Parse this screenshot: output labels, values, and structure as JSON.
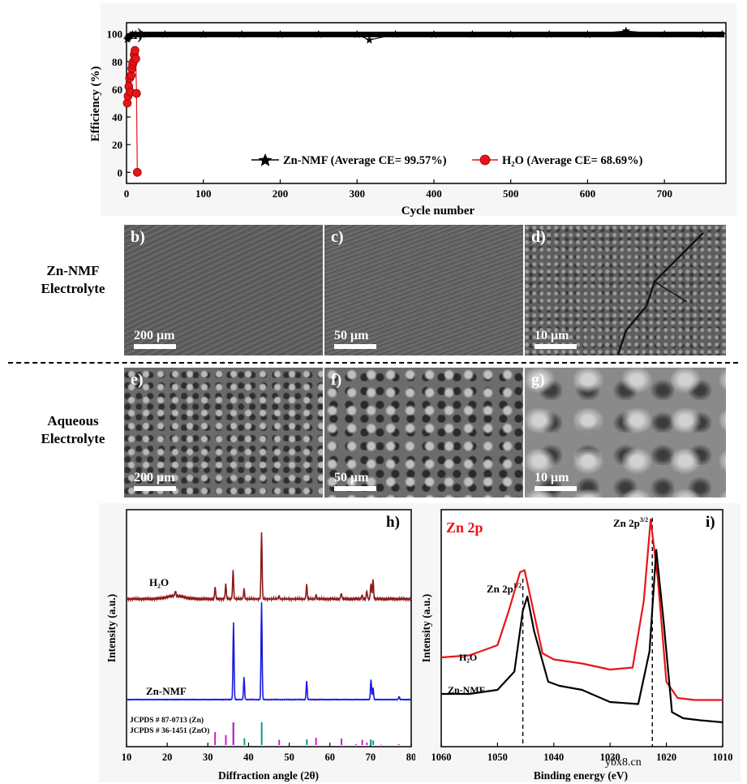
{
  "chart_data": [
    {
      "type": "scatter",
      "panel_label": "a)",
      "xlabel": "Cycle number",
      "ylabel": "Efficiency (%)",
      "xlim": [
        0,
        780
      ],
      "ylim": [
        -8,
        108
      ],
      "xticks": [
        0,
        100,
        200,
        300,
        400,
        500,
        600,
        700
      ],
      "yticks": [
        0,
        20,
        40,
        60,
        80,
        100
      ],
      "legend_position": "bottom-right",
      "series": [
        {
          "name": "Zn-NMF (Average CE= 99.57%)",
          "marker": "star",
          "color": "#000000",
          "x": [
            1,
            2,
            3,
            5,
            8,
            12,
            20,
            50,
            100,
            150,
            200,
            250,
            300,
            316,
            350,
            400,
            450,
            500,
            550,
            600,
            650,
            700,
            750,
            775
          ],
          "y": [
            96,
            97,
            98,
            99,
            99.5,
            99.6,
            99.5,
            99.6,
            99.5,
            99.6,
            99.5,
            99.6,
            99.5,
            95.5,
            99.6,
            99.5,
            99.6,
            99.5,
            99.6,
            99.5,
            102,
            99.6,
            99.5,
            99.6
          ]
        },
        {
          "name": "H₂O (Average CE= 68.69%)",
          "marker": "circle",
          "color": "#e8141a",
          "x": [
            1,
            2,
            3,
            4,
            5,
            6,
            7,
            8,
            9,
            10,
            11,
            12,
            13,
            14
          ],
          "y": [
            50,
            55,
            62,
            68,
            58,
            70,
            75,
            78,
            80,
            85,
            88,
            82,
            57,
            0
          ]
        }
      ]
    },
    {
      "type": "line",
      "panel_label": "h)",
      "xlabel": "Diffraction angle (2θ)",
      "ylabel": "Intensity (a.u.)",
      "xlim": [
        10,
        80
      ],
      "xticks": [
        10,
        20,
        30,
        40,
        50,
        60,
        70,
        80
      ],
      "series": [
        {
          "name": "H₂O",
          "color": "#8b1a1a",
          "peaks": [
            [
              22,
              2.5
            ],
            [
              31.8,
              6
            ],
            [
              34.4,
              7
            ],
            [
              36.2,
              14
            ],
            [
              38.9,
              5
            ],
            [
              43.2,
              33
            ],
            [
              47.5,
              1.5
            ],
            [
              54.3,
              7
            ],
            [
              56.6,
              2
            ],
            [
              62.8,
              3
            ],
            [
              67.9,
              2
            ],
            [
              69.1,
              4
            ],
            [
              70.6,
              10
            ],
            [
              70.1,
              8
            ]
          ]
        },
        {
          "name": "Zn-NMF",
          "color": "#1a1adf",
          "peaks": [
            [
              36.3,
              38
            ],
            [
              38.9,
              11
            ],
            [
              43.2,
              48
            ],
            [
              54.3,
              9
            ],
            [
              70.1,
              10
            ],
            [
              70.6,
              6
            ],
            [
              77,
              1.5
            ]
          ]
        }
      ],
      "references": [
        {
          "name": "JCPDS # 87-0713 (Zn)",
          "color": "#0b9a8a",
          "lines": [
            [
              36.3,
              100
            ],
            [
              38.99,
              30
            ],
            [
              43.23,
              100
            ],
            [
              54.34,
              25
            ],
            [
              70.06,
              25
            ],
            [
              70.66,
              20
            ]
          ]
        },
        {
          "name": "JCPDS # 36-1451 (ZnO)",
          "color": "#d01ad0",
          "lines": [
            [
              31.77,
              57
            ],
            [
              34.42,
              44
            ],
            [
              36.25,
              100
            ],
            [
              47.54,
              23
            ],
            [
              56.6,
              32
            ],
            [
              62.86,
              29
            ],
            [
              66.38,
              4
            ],
            [
              67.96,
              23
            ],
            [
              69.1,
              11
            ],
            [
              72.56,
              2
            ],
            [
              76.95,
              4
            ]
          ]
        }
      ]
    },
    {
      "type": "line",
      "panel_label": "i)",
      "title": "Zn 2p",
      "xlabel": "Binding energy (eV)",
      "ylabel": "Intensity (a.u.)",
      "xlim": [
        1060,
        1010
      ],
      "xticks": [
        1060,
        1050,
        1040,
        1030,
        1020,
        1010
      ],
      "annotations": [
        "Zn 2p",
        "1/2",
        "Zn 2p",
        "3/2"
      ],
      "series": [
        {
          "name": "H₂O",
          "color": "#e8141a",
          "x": [
            1060,
            1055,
            1050,
            1048,
            1046,
            1045.2,
            1044,
            1042,
            1040,
            1035,
            1030,
            1026,
            1024,
            1022.8,
            1021.5,
            1020,
            1018,
            1015,
            1010
          ],
          "y": [
            0.32,
            0.33,
            0.38,
            0.55,
            0.74,
            0.75,
            0.6,
            0.34,
            0.31,
            0.29,
            0.26,
            0.27,
            0.6,
            1.0,
            0.7,
            0.2,
            0.12,
            0.11,
            0.11
          ]
        },
        {
          "name": "Zn-NMF",
          "color": "#000000",
          "x": [
            1060,
            1055,
            1050,
            1047,
            1045.5,
            1044.7,
            1043.5,
            1041,
            1039,
            1035,
            1030,
            1025,
            1023,
            1021.8,
            1020.5,
            1019,
            1017,
            1014,
            1010
          ],
          "y": [
            0.14,
            0.14,
            0.16,
            0.25,
            0.55,
            0.62,
            0.45,
            0.2,
            0.18,
            0.16,
            0.1,
            0.09,
            0.35,
            0.85,
            0.5,
            0.05,
            0.02,
            0.01,
            0.0
          ]
        }
      ],
      "dashed_markers": [
        1045.5,
        1022.5
      ]
    }
  ],
  "sem_panels": {
    "row_labels": [
      {
        "line1": "Zn-NMF",
        "line2": "Electrolyte"
      },
      {
        "line1": "Aqueous",
        "line2": "Electrolyte"
      }
    ],
    "tiles": [
      {
        "label": "b)",
        "scale": "200 μm"
      },
      {
        "label": "c)",
        "scale": "50 μm"
      },
      {
        "label": "d)",
        "scale": "10 μm"
      },
      {
        "label": "e)",
        "scale": "200 μm"
      },
      {
        "label": "f)",
        "scale": "50 μm"
      },
      {
        "label": "g)",
        "scale": "10 μm"
      }
    ]
  },
  "watermark": "ybx8.cn",
  "colors": {
    "zn_nmf": "#000000",
    "h2o_red": "#e8141a",
    "xrd_h2o": "#8b1a1a",
    "xrd_zn_nmf": "#1a1adf",
    "ref_zn": "#0b9a8a",
    "ref_zno": "#d01ad0"
  }
}
